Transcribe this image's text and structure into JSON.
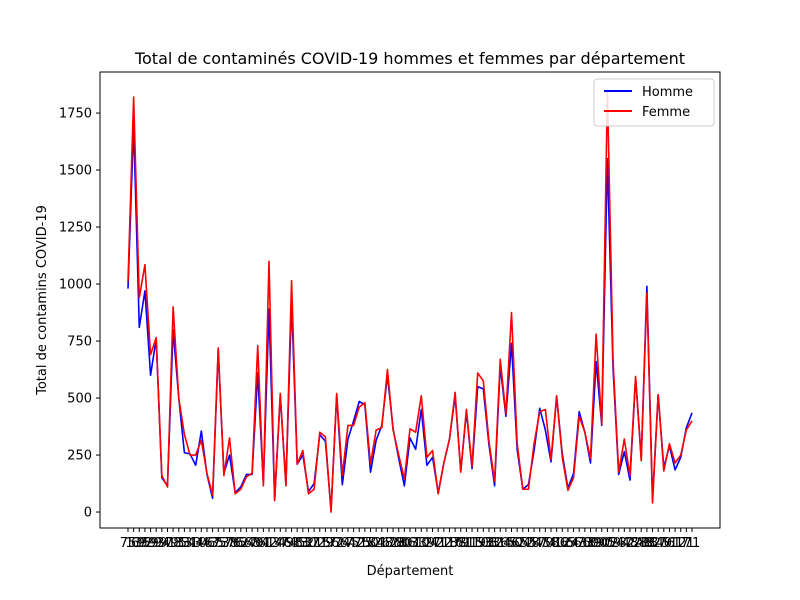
{
  "chart_data": {
    "type": "line",
    "title": "Total de contaminés COVID-19 hommes et femmes par département",
    "xlabel": "Département",
    "ylabel": "Total de contamins COVID-19",
    "ylim": [
      -70,
      1930
    ],
    "yticks": [
      0,
      250,
      500,
      750,
      1000,
      1250,
      1500,
      1750
    ],
    "grid": false,
    "legend_position": "top-right",
    "categories": [
      "75",
      "13",
      "69",
      "92",
      "59",
      "93",
      "94",
      "91",
      "78",
      "95",
      "33",
      "31",
      "44",
      "34",
      "06",
      "67",
      "35",
      "57",
      "38",
      "76",
      "62",
      "54",
      "68",
      "76",
      "01",
      "42",
      "14",
      "37",
      "49",
      "63",
      "45",
      "83",
      "30",
      "21",
      "71",
      "29",
      "56",
      "72",
      "74",
      "64",
      "77",
      "51",
      "25",
      "50",
      "84",
      "26",
      "17",
      "86",
      "28",
      "80",
      "03",
      "61",
      "10",
      "39",
      "27",
      "41",
      "22",
      "18",
      "16",
      "79",
      "81",
      "11",
      "19",
      "53",
      "08",
      "32",
      "36",
      "15",
      "46",
      "52",
      "04",
      "55",
      "24",
      "87",
      "70",
      "58",
      "40",
      "12",
      "65",
      "66",
      "43",
      "73",
      "60",
      "89",
      "90",
      "05",
      "09",
      "23",
      "47",
      "48",
      "2A",
      "2B",
      "88",
      "82",
      "87",
      "40",
      "51",
      "61",
      "17",
      "21",
      "71"
    ],
    "series": [
      {
        "name": "Homme",
        "color": "#0000ff",
        "values": [
          980,
          1700,
          810,
          970,
          600,
          760,
          150,
          115,
          800,
          500,
          260,
          255,
          205,
          355,
          165,
          60,
          710,
          170,
          250,
          85,
          110,
          165,
          165,
          610,
          125,
          890,
          55,
          510,
          120,
          925,
          210,
          250,
          90,
          125,
          340,
          310,
          10,
          510,
          120,
          320,
          400,
          485,
          470,
          175,
          315,
          380,
          600,
          365,
          235,
          115,
          325,
          275,
          450,
          205,
          240,
          85,
          215,
          320,
          510,
          180,
          440,
          190,
          550,
          540,
          295,
          115,
          640,
          420,
          740,
          275,
          100,
          120,
          270,
          455,
          360,
          220,
          505,
          255,
          105,
          170,
          440,
          350,
          215,
          660,
          380,
          1550,
          630,
          165,
          265,
          140,
          590,
          235,
          990,
          55,
          515,
          195,
          290,
          185,
          240,
          370,
          435
        ]
      },
      {
        "name": "Femme",
        "color": "#ff0000",
        "values": [
          1010,
          1820,
          940,
          1085,
          690,
          765,
          160,
          110,
          900,
          500,
          340,
          250,
          250,
          315,
          170,
          75,
          720,
          160,
          325,
          80,
          100,
          155,
          170,
          730,
          115,
          1100,
          50,
          520,
          115,
          1015,
          210,
          270,
          80,
          100,
          350,
          330,
          0,
          520,
          160,
          380,
          380,
          460,
          480,
          210,
          360,
          370,
          625,
          360,
          250,
          145,
          365,
          350,
          510,
          240,
          270,
          80,
          215,
          320,
          525,
          175,
          450,
          200,
          610,
          575,
          310,
          135,
          670,
          430,
          875,
          300,
          100,
          100,
          300,
          440,
          450,
          230,
          510,
          240,
          95,
          150,
          420,
          350,
          235,
          780,
          385,
          1850,
          665,
          175,
          320,
          160,
          595,
          225,
          960,
          40,
          515,
          180,
          300,
          215,
          250,
          360,
          400
        ]
      }
    ]
  }
}
